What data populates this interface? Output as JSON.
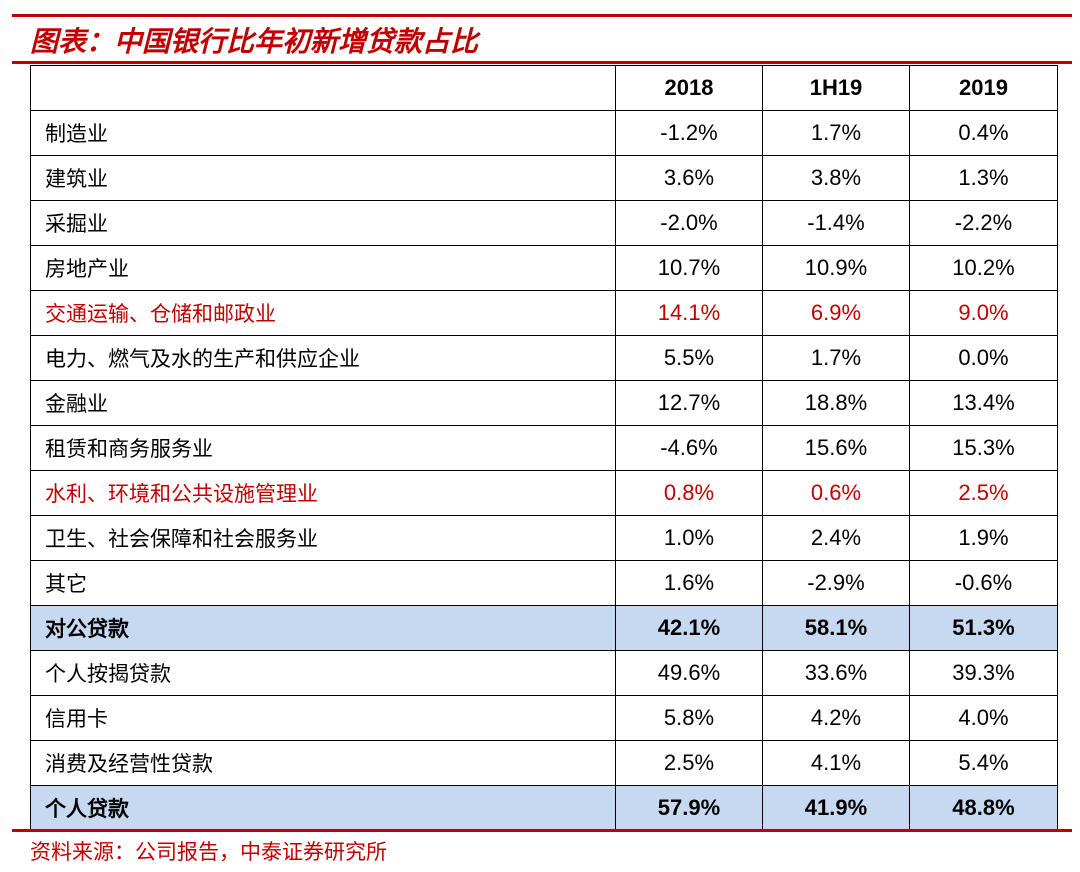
{
  "header": {
    "title": "图表：中国银行比年初新增贷款占比"
  },
  "table": {
    "columns": [
      "2018",
      "1H19",
      "2019"
    ],
    "rows": [
      {
        "cells": [
          "制造业",
          "-1.2%",
          "1.7%",
          "0.4%"
        ]
      },
      {
        "cells": [
          "建筑业",
          "3.6%",
          "3.8%",
          "1.3%"
        ]
      },
      {
        "cells": [
          "采掘业",
          "-2.0%",
          "-1.4%",
          "-2.2%"
        ]
      },
      {
        "cells": [
          "房地产业",
          "10.7%",
          "10.9%",
          "10.2%"
        ]
      },
      {
        "cells": [
          "交通运输、仓储和邮政业",
          "14.1%",
          "6.9%",
          "9.0%"
        ],
        "color": "#c00000"
      },
      {
        "cells": [
          "电力、燃气及水的生产和供应企业",
          "5.5%",
          "1.7%",
          "0.0%"
        ]
      },
      {
        "cells": [
          "金融业",
          "12.7%",
          "18.8%",
          "13.4%"
        ]
      },
      {
        "cells": [
          "租赁和商务服务业",
          "-4.6%",
          "15.6%",
          "15.3%"
        ]
      },
      {
        "cells": [
          "水利、环境和公共设施管理业",
          "0.8%",
          "0.6%",
          "2.5%"
        ],
        "color": "#c00000"
      },
      {
        "cells": [
          "卫生、社会保障和社会服务业",
          "1.0%",
          "2.4%",
          "1.9%"
        ]
      },
      {
        "cells": [
          "其它",
          "1.6%",
          "-2.9%",
          "-0.6%"
        ]
      },
      {
        "cells": [
          "对公贷款",
          "42.1%",
          "58.1%",
          "51.3%"
        ],
        "background": "#c6d9f0",
        "bold": true
      },
      {
        "cells": [
          "个人按揭贷款",
          "49.6%",
          "33.6%",
          "39.3%"
        ]
      },
      {
        "cells": [
          "信用卡",
          "5.8%",
          "4.2%",
          "4.0%"
        ]
      },
      {
        "cells": [
          "消费及经营性贷款",
          "2.5%",
          "4.1%",
          "5.4%"
        ]
      },
      {
        "cells": [
          "个人贷款",
          "57.9%",
          "41.9%",
          "48.8%"
        ],
        "background": "#c6d9f0",
        "bold": true
      }
    ]
  },
  "footer": {
    "source": "资料来源：公司报告，中泰证券研究所"
  }
}
